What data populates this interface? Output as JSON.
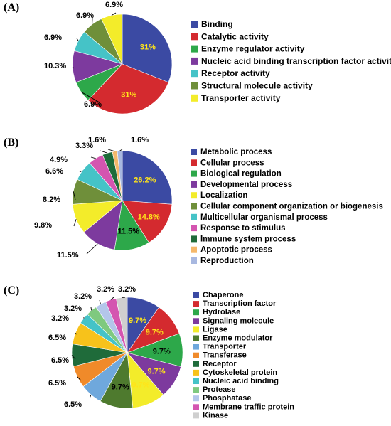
{
  "chart_data": [
    {
      "type": "pie",
      "panel_label": "(A)",
      "labels": [
        "Binding",
        "Catalytic activity",
        "Enzyme regulator activity",
        "Nucleic acid binding transcription factor activity",
        "Receptor activity",
        "Structural molecule activity",
        "Transporter activity"
      ],
      "values": [
        31,
        31,
        6.9,
        10.3,
        6.9,
        6.9,
        6.9
      ],
      "value_labels": [
        "31%",
        "31%",
        "6.9%",
        "10.3%",
        "6.9%",
        "6.9%",
        "6.9%"
      ],
      "colors": [
        "#3b4aa3",
        "#d42a2f",
        "#2da84a",
        "#7d3a9e",
        "#45c3c7",
        "#6f8f3a",
        "#f3ec2a"
      ],
      "legend_position": "right"
    },
    {
      "type": "pie",
      "panel_label": "(B)",
      "labels": [
        "Metabolic process",
        "Cellular process",
        "Biological regulation",
        "Developmental process",
        "Localization",
        "Cellular component organization or biogenesis",
        "Multicellular organismal process",
        "Response to stimulus",
        "Immune system process",
        "Apoptotic process",
        "Reproduction"
      ],
      "values": [
        26.2,
        14.8,
        11.5,
        11.5,
        9.8,
        8.2,
        6.6,
        4.9,
        3.3,
        1.6,
        1.6
      ],
      "value_labels": [
        "26.2%",
        "14.8%",
        "11.5%",
        "11.5%",
        "9.8%",
        "8.2%",
        "6.6%",
        "4.9%",
        "3.3%",
        "1.6%",
        "1.6%"
      ],
      "colors": [
        "#3b4aa3",
        "#d42a2f",
        "#2da84a",
        "#7d3a9e",
        "#f3ec2a",
        "#6f8f3a",
        "#45c3c7",
        "#d455b0",
        "#1f6b3a",
        "#f5b86a",
        "#a8b8e0"
      ],
      "legend_position": "right"
    },
    {
      "type": "pie",
      "panel_label": "(C)",
      "labels": [
        "Chaperone",
        "Transcription factor",
        "Hydrolase",
        "Signaling molecule",
        "Ligase",
        "Enzyme modulator",
        "Transporter",
        "Transferase",
        "Receptor",
        "Cytoskeletal protein",
        "Nucleic acid binding",
        "Protease",
        "Phosphatase",
        "Membrane traffic protein",
        "Kinase"
      ],
      "values": [
        9.7,
        9.7,
        9.7,
        9.7,
        9.7,
        9.7,
        6.5,
        6.5,
        6.5,
        6.5,
        3.2,
        3.2,
        3.2,
        3.2,
        3.2
      ],
      "value_labels": [
        "9.7%",
        "9.7%",
        "9.7%",
        "9.7%",
        "9.7%",
        "9.7%",
        "6.5%",
        "6.5%",
        "6.5%",
        "6.5%",
        "3.2%",
        "3.2%",
        "3.2%",
        "3.2%",
        "3.2%"
      ],
      "colors": [
        "#3b4aa3",
        "#d42a2f",
        "#2da84a",
        "#7d3a9e",
        "#f3ec2a",
        "#4e7a2e",
        "#6fa8dc",
        "#f08a2a",
        "#1f6b3a",
        "#f7c21b",
        "#45c3c7",
        "#7fc97f",
        "#b3c6ea",
        "#d455b0",
        "#cfcfcf"
      ],
      "legend_position": "right"
    }
  ]
}
